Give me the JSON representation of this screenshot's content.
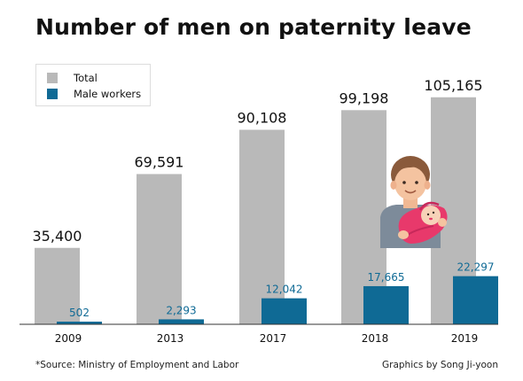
{
  "title": "Number of men on paternity leave",
  "footer": {
    "source": "*Source: Ministry of Employment and Labor",
    "credit": "Graphics by Song Ji-yoon"
  },
  "illustration": {
    "icon": "father-holding-baby-icon"
  },
  "colors": {
    "total": "#b9b9b9",
    "male_workers": "#0f6a95",
    "axis": "#333333"
  },
  "chart_data": {
    "type": "bar",
    "categories": [
      "2009",
      "2013",
      "2017",
      "2018",
      "2019"
    ],
    "series": [
      {
        "name": "Total",
        "values": [
          35400,
          69591,
          90108,
          99198,
          105165
        ],
        "labels": [
          "35,400",
          "69,591",
          "90,108",
          "99,198",
          "105,165"
        ]
      },
      {
        "name": "Male workers",
        "values": [
          502,
          2293,
          12042,
          17665,
          22297
        ],
        "labels": [
          "502",
          "2,293",
          "12,042",
          "17,665",
          "22,297"
        ]
      }
    ],
    "ylim": [
      0,
      110000
    ],
    "legend": "top-left",
    "grid": false,
    "xlabel": "",
    "ylabel": ""
  }
}
